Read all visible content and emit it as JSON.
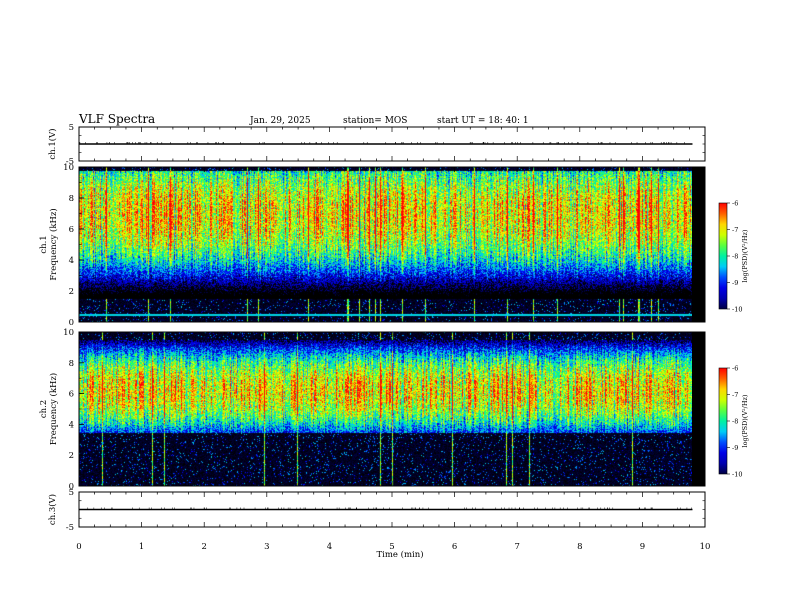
{
  "header": {
    "title": "VLF Spectra",
    "date": "Jan. 29, 2025",
    "station": "station= MOS",
    "start": "start  UT  =   18: 40: 1"
  },
  "colors": {
    "scale": [
      "#000000",
      "#0000a0",
      "#0000ff",
      "#00c8ff",
      "#00ff80",
      "#b4ff00",
      "#ffff00",
      "#ff7800",
      "#ff0000",
      "#ffffff"
    ]
  },
  "chart_data": [
    {
      "type": "line",
      "name": "ch1-waveform",
      "ylabel": "ch.1(V)",
      "yticks": [
        "5",
        "-5"
      ],
      "ylim": [
        -5,
        5
      ],
      "x": [
        0,
        9.8
      ],
      "y": [
        0,
        0
      ]
    },
    {
      "type": "heatmap",
      "name": "ch1-spectrogram",
      "ylabel": "ch.1\nFrequency (kHz)",
      "yticks": [
        "0",
        "2",
        "4",
        "6",
        "8",
        "10"
      ],
      "ylim": [
        0,
        10
      ],
      "xlim": [
        0,
        9.8
      ],
      "band_khz": [
        1.5,
        9.8
      ],
      "peak_khz": 7.0,
      "narrowband_khz": 0.5,
      "colorbar": {
        "label": "log(PSD)(V²/Hz)",
        "ticks": [
          "-6",
          "-7",
          "-8",
          "-9",
          "-10"
        ],
        "range": [
          -10,
          -6
        ]
      }
    },
    {
      "type": "heatmap",
      "name": "ch2-spectrogram",
      "ylabel": "ch.2\nFrequency (kHz)",
      "yticks": [
        "0",
        "2",
        "4",
        "6",
        "8",
        "10"
      ],
      "ylim": [
        0,
        10
      ],
      "xlim": [
        0,
        9.8
      ],
      "band_khz": [
        3.5,
        9.5
      ],
      "peak_khz": 6.2,
      "colorbar": {
        "label": "log(PSD)(V²/Hz)",
        "ticks": [
          "-6",
          "-7",
          "-8",
          "-9",
          "-10"
        ],
        "range": [
          -10,
          -6
        ]
      }
    },
    {
      "type": "line",
      "name": "ch3-waveform",
      "ylabel": "ch.3(V)",
      "yticks": [
        "5",
        "-5"
      ],
      "ylim": [
        -5,
        5
      ],
      "x": [
        0,
        9.8
      ],
      "y": [
        0,
        0
      ]
    }
  ],
  "xaxis": {
    "label": "Time  (min)",
    "ticks": [
      "0",
      "1",
      "2",
      "3",
      "4",
      "5",
      "6",
      "7",
      "8",
      "9",
      "10"
    ],
    "xlim": [
      0,
      10
    ]
  }
}
